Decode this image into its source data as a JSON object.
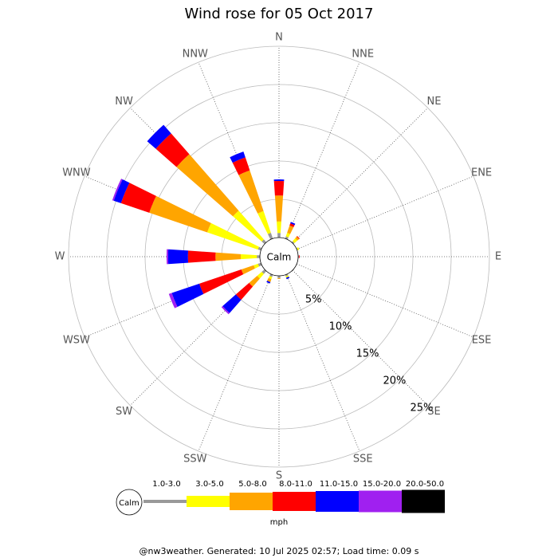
{
  "chart_data": {
    "type": "windrose",
    "title": "Wind rose for 05 Oct 2017",
    "categories": [
      "N",
      "NNE",
      "NE",
      "ENE",
      "E",
      "ESE",
      "SE",
      "SSE",
      "S",
      "SSW",
      "SW",
      "WSW",
      "W",
      "WNW",
      "NW",
      "NNW"
    ],
    "series": [
      {
        "name": "1.0-3.0",
        "color": "#999999",
        "values": [
          0.6,
          0.3,
          0.2,
          0.1,
          0.1,
          0,
          0.1,
          0.2,
          0.3,
          0.3,
          0.5,
          0.4,
          0.4,
          0.4,
          0.5,
          0.8
        ]
      },
      {
        "name": "3.0-5.0",
        "color": "#ffff00",
        "values": [
          1.5,
          0.5,
          0.5,
          0.2,
          0,
          0,
          0,
          0.2,
          0,
          0.3,
          0.8,
          0.6,
          2.1,
          7.0,
          5.0,
          3.0
        ]
      },
      {
        "name": "5.0-8.0",
        "color": "#ffa500",
        "values": [
          3.4,
          1.0,
          0.3,
          0,
          0,
          0,
          0,
          0,
          0.1,
          0.4,
          1.4,
          1.7,
          3.3,
          8.0,
          9.8,
          5.6
        ]
      },
      {
        "name": "8.0-11.0",
        "color": "#ff0000",
        "values": [
          1.9,
          0.3,
          0.1,
          0,
          0.1,
          0,
          0,
          0,
          0,
          0,
          2.3,
          5.8,
          3.6,
          3.9,
          3.6,
          1.8
        ]
      },
      {
        "name": "11.0-15.0",
        "color": "#0000ff",
        "values": [
          0.2,
          0.2,
          0,
          0,
          0,
          0,
          0,
          0.2,
          0,
          0.2,
          2.3,
          3.8,
          2.6,
          1.0,
          1.5,
          0.8
        ]
      },
      {
        "name": "15.0-20.0",
        "color": "#a020f0",
        "values": [
          0,
          0,
          0,
          0,
          0,
          0,
          0,
          0,
          0,
          0,
          0.2,
          0.4,
          0.2,
          0.2,
          0,
          0
        ]
      },
      {
        "name": "20.0-50.0",
        "color": "#000000",
        "values": [
          0,
          0,
          0,
          0,
          0,
          0,
          0,
          0,
          0,
          0,
          0,
          0,
          0,
          0,
          0,
          0
        ]
      }
    ],
    "rlim": [
      0,
      25
    ],
    "rticks": [
      {
        "value": 5,
        "label": "5%"
      },
      {
        "value": 10,
        "label": "10%"
      },
      {
        "value": 15,
        "label": "15%"
      },
      {
        "value": 20,
        "label": "20%"
      },
      {
        "value": 25,
        "label": "25%"
      }
    ],
    "calm_label": "Calm",
    "legend_unit": "mph",
    "footer": "@nw3weather. Generated: 10 Jul 2025 02:57; Load time: 0.09 s"
  }
}
